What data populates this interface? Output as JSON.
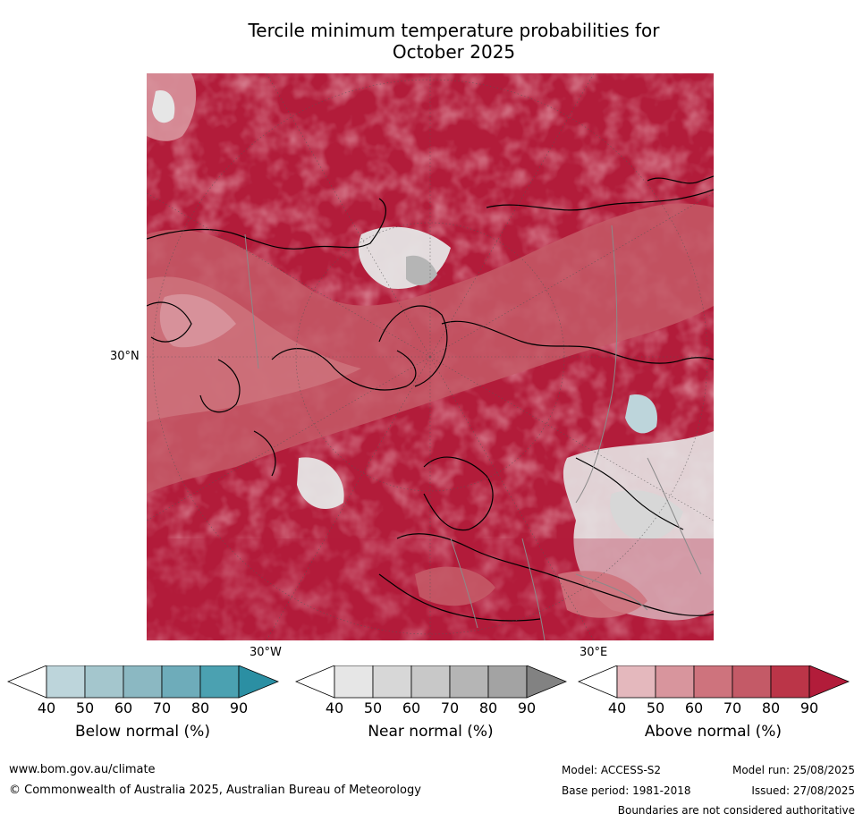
{
  "title_line1": "Tercile minimum temperature probabilities for",
  "title_line2": "October 2025",
  "labels": {
    "lat": "30°N",
    "lon_left": "30°W",
    "lon_right": "30°E"
  },
  "legends": [
    {
      "title": "Below normal (%)",
      "ticks": [
        "40",
        "50",
        "60",
        "70",
        "80",
        "90"
      ],
      "colors": [
        "#ffffff",
        "#bdd5db",
        "#a4c6cd",
        "#8bb8c2",
        "#6eacba",
        "#4ba1b1",
        "#2b8fa3"
      ]
    },
    {
      "title": "Near normal (%)",
      "ticks": [
        "40",
        "50",
        "60",
        "70",
        "80",
        "90"
      ],
      "colors": [
        "#ffffff",
        "#e6e6e6",
        "#d7d7d7",
        "#c8c8c8",
        "#b5b5b5",
        "#a3a3a3",
        "#828282"
      ]
    },
    {
      "title": "Above normal (%)",
      "ticks": [
        "40",
        "50",
        "60",
        "70",
        "80",
        "90"
      ],
      "colors": [
        "#ffffff",
        "#e4b8bd",
        "#d8959d",
        "#ce737d",
        "#c45a67",
        "#bb3548",
        "#b21c3a"
      ]
    }
  ],
  "footer": {
    "website": "www.bom.gov.au/climate",
    "copyright": "© Commonwealth of Australia 2025, Australian Bureau of Meteorology",
    "model": "Model: ACCESS-S2",
    "base_period": "Base period: 1981-2018",
    "model_run": "Model run: 25/08/2025",
    "issued": "Issued: 27/08/2025",
    "disclaimer": "Boundaries are not considered authoritative"
  }
}
